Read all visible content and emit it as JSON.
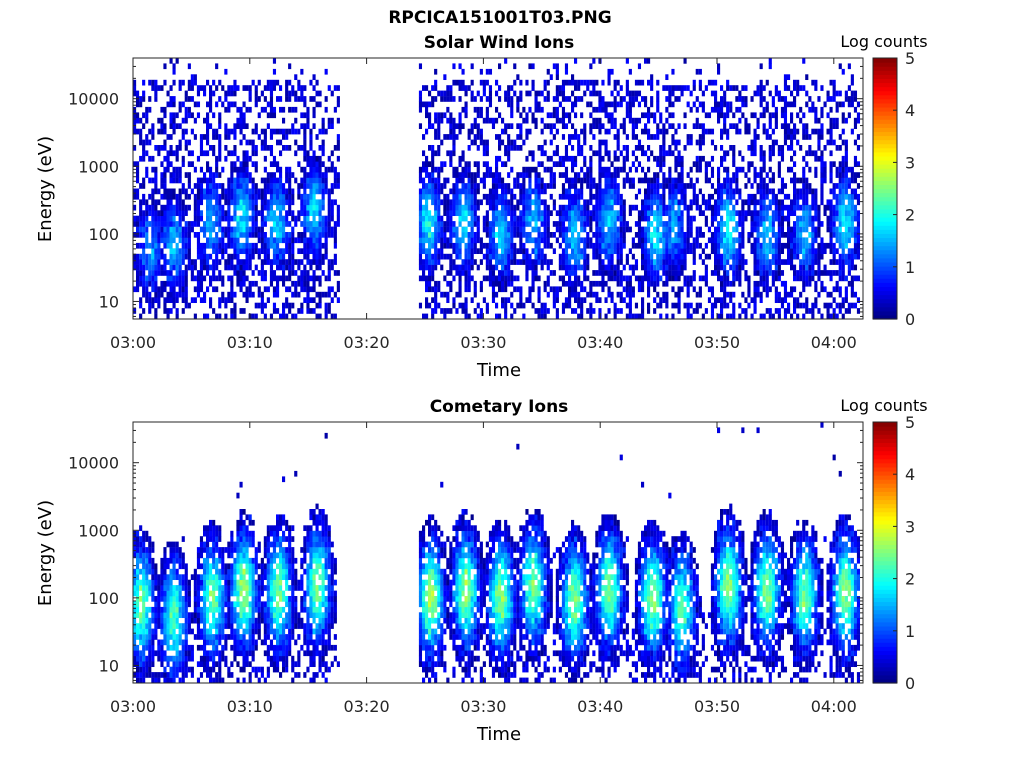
{
  "figure": {
    "title": "RPCICA151001T03.PNG"
  },
  "chart_data": [
    {
      "type": "heatmap",
      "title": "Solar Wind Ions",
      "xlabel": "Time",
      "ylabel": "Energy (eV)",
      "x_ticks": [
        "03:00",
        "03:10",
        "03:20",
        "03:30",
        "03:40",
        "03:50",
        "04:00"
      ],
      "x_tick_minutes": [
        0,
        10,
        20,
        30,
        40,
        50,
        60
      ],
      "xlim_minutes": [
        0,
        62.5
      ],
      "y_scale": "log",
      "y_ticks": [
        "10",
        "100",
        "1000",
        "10000"
      ],
      "y_tick_values": [
        10,
        100,
        1000,
        10000
      ],
      "ylim": [
        5.5,
        40000
      ],
      "colorbar_label": "Log counts",
      "colorbar_ticks": [
        "0",
        "1",
        "2",
        "3",
        "4",
        "5"
      ],
      "colorbar_range": [
        0,
        5
      ],
      "colormap": "jet",
      "data_gap_minutes": [
        17.8,
        24.5
      ],
      "bursts": [
        {
          "t": 1.5,
          "e": 60,
          "level": 1.3
        },
        {
          "t": 3.5,
          "e": 70,
          "level": 1.5
        },
        {
          "t": 6.7,
          "e": 150,
          "level": 1.5
        },
        {
          "t": 9.3,
          "e": 180,
          "level": 1.8
        },
        {
          "t": 12.3,
          "e": 150,
          "level": 1.7
        },
        {
          "t": 15.5,
          "e": 220,
          "level": 1.7
        },
        {
          "t": 25.3,
          "e": 150,
          "level": 1.9
        },
        {
          "t": 28.3,
          "e": 150,
          "level": 1.7
        },
        {
          "t": 31.5,
          "e": 100,
          "level": 1.6
        },
        {
          "t": 34.3,
          "e": 150,
          "level": 1.5
        },
        {
          "t": 37.8,
          "e": 100,
          "level": 1.6
        },
        {
          "t": 40.8,
          "e": 150,
          "level": 1.6
        },
        {
          "t": 44.8,
          "e": 100,
          "level": 1.8
        },
        {
          "t": 46.3,
          "e": 130,
          "level": 1.4
        },
        {
          "t": 51,
          "e": 120,
          "level": 1.9
        },
        {
          "t": 54.3,
          "e": 100,
          "level": 1.6
        },
        {
          "t": 57.5,
          "e": 100,
          "level": 1.5
        },
        {
          "t": 61,
          "e": 150,
          "level": 1.8
        }
      ]
    },
    {
      "type": "heatmap",
      "title": "Cometary Ions",
      "xlabel": "Time",
      "ylabel": "Energy (eV)",
      "x_ticks": [
        "03:00",
        "03:10",
        "03:20",
        "03:30",
        "03:40",
        "03:50",
        "04:00"
      ],
      "x_tick_minutes": [
        0,
        10,
        20,
        30,
        40,
        50,
        60
      ],
      "xlim_minutes": [
        0,
        62.5
      ],
      "y_scale": "log",
      "y_ticks": [
        "10",
        "100",
        "1000",
        "10000"
      ],
      "y_tick_values": [
        10,
        100,
        1000,
        10000
      ],
      "ylim": [
        5.5,
        40000
      ],
      "colorbar_label": "Log counts",
      "colorbar_ticks": [
        "0",
        "1",
        "2",
        "3",
        "4",
        "5"
      ],
      "colorbar_range": [
        0,
        5
      ],
      "colormap": "jet",
      "data_gap_minutes": [
        17.8,
        24.5
      ],
      "bursts": [
        {
          "t": 0.7,
          "e": 80,
          "level": 2.4
        },
        {
          "t": 3.5,
          "e": 50,
          "level": 2.3
        },
        {
          "t": 6.8,
          "e": 100,
          "level": 2.4
        },
        {
          "t": 9.5,
          "e": 130,
          "level": 2.6
        },
        {
          "t": 12.5,
          "e": 120,
          "level": 2.5
        },
        {
          "t": 15.8,
          "e": 150,
          "level": 2.5
        },
        {
          "t": 25.5,
          "e": 100,
          "level": 2.7
        },
        {
          "t": 28.5,
          "e": 130,
          "level": 2.6
        },
        {
          "t": 31.5,
          "e": 100,
          "level": 2.6
        },
        {
          "t": 34.3,
          "e": 150,
          "level": 2.5
        },
        {
          "t": 37.8,
          "e": 90,
          "level": 2.5
        },
        {
          "t": 40.8,
          "e": 130,
          "level": 2.5
        },
        {
          "t": 44.5,
          "e": 100,
          "level": 2.6
        },
        {
          "t": 47,
          "e": 70,
          "level": 2.3
        },
        {
          "t": 51,
          "e": 150,
          "level": 2.6
        },
        {
          "t": 54.3,
          "e": 130,
          "level": 2.5
        },
        {
          "t": 57.5,
          "e": 110,
          "level": 2.4
        },
        {
          "t": 61,
          "e": 120,
          "level": 2.6
        }
      ]
    }
  ]
}
